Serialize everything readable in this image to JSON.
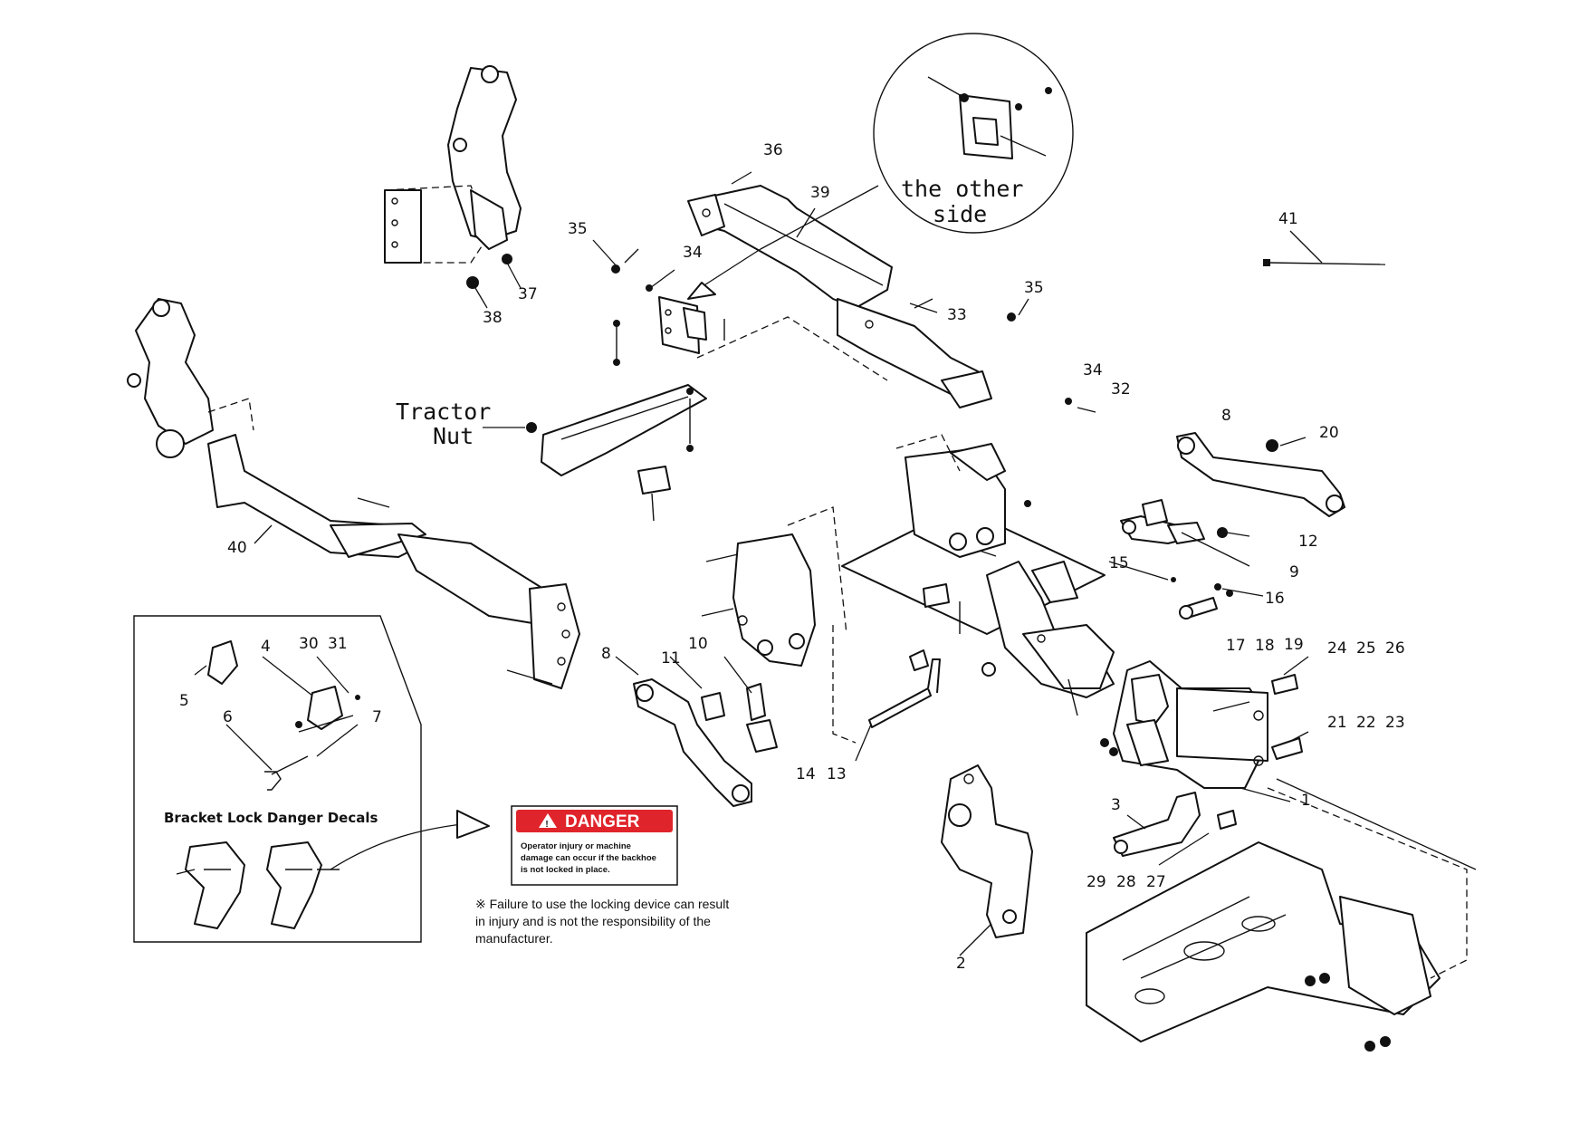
{
  "labels": {
    "other_side": [
      "the other",
      "side"
    ],
    "tractor_nut": [
      "Tractor",
      "Nut"
    ],
    "bracket_lock_decals": "Bracket Lock Danger Decals"
  },
  "danger": {
    "heading": "DANGER",
    "lines": [
      "Operator injury or machine",
      "damage can occur if the backhoe",
      "is not locked in place."
    ],
    "color": "#e0242b"
  },
  "note": {
    "lines": [
      "※ Failure to use the locking device can result",
      "in injury and is not the responsibility of the",
      "manufacturer."
    ]
  },
  "callouts": [
    "1",
    "2",
    "3",
    "4",
    "5",
    "6",
    "7",
    "8",
    "8",
    "9",
    "10",
    "11",
    "12",
    "13",
    "14",
    "15",
    "16",
    "17",
    "18",
    "19",
    "20",
    "21",
    "22",
    "23",
    "24",
    "25",
    "26",
    "27",
    "28",
    "29",
    "30",
    "31",
    "32",
    "33",
    "34",
    "34",
    "35",
    "35",
    "36",
    "37",
    "38",
    "39",
    "40",
    "41"
  ]
}
